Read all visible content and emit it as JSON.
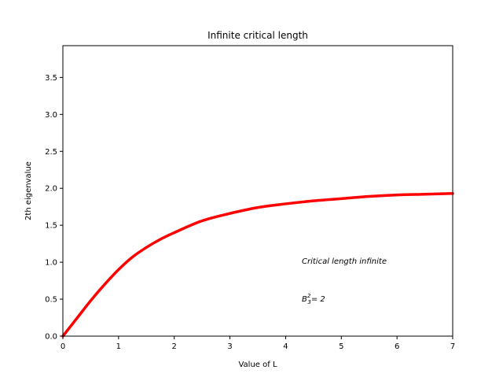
{
  "chart_data": {
    "type": "line",
    "title": "Infinite critical length",
    "xlabel": "Value of L",
    "ylabel": "2th eigenvalue",
    "xlim": [
      0,
      7
    ],
    "ylim": [
      0,
      3.93
    ],
    "x_ticks": [
      "0",
      "1",
      "2",
      "3",
      "4",
      "5",
      "6",
      "7"
    ],
    "y_ticks": [
      "0.0",
      "0.5",
      "1.0",
      "1.5",
      "2.0",
      "2.5",
      "3.0",
      "3.5"
    ],
    "grid": false,
    "series": [
      {
        "color": "#ff0000",
        "x": [
          0,
          0.25,
          0.5,
          0.75,
          1.0,
          1.25,
          1.5,
          1.75,
          2.0,
          2.5,
          3.0,
          3.5,
          4.0,
          4.5,
          5.0,
          5.5,
          6.0,
          6.5,
          7.0
        ],
        "y": [
          0.0,
          0.24,
          0.48,
          0.7,
          0.9,
          1.07,
          1.2,
          1.31,
          1.4,
          1.56,
          1.66,
          1.74,
          1.79,
          1.83,
          1.86,
          1.89,
          1.91,
          1.92,
          1.93
        ]
      }
    ],
    "annotations": {
      "critical_text": "Critical length infinite",
      "b_symbol": "B",
      "b_sup": "2",
      "b_sub": "3",
      "b_value": "= 2"
    }
  }
}
